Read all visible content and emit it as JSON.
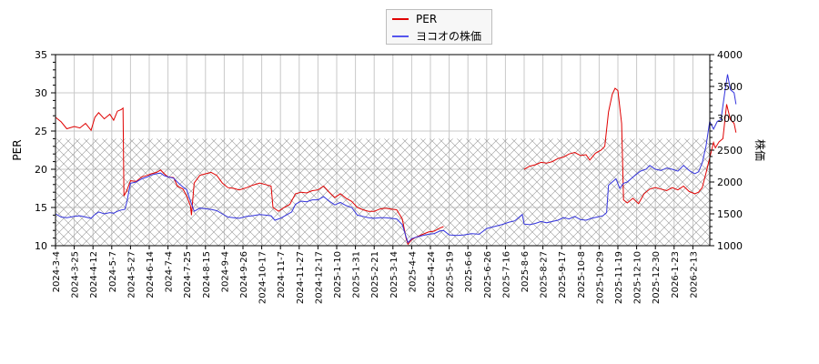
{
  "legend": {
    "items": [
      {
        "label": "PER",
        "color": "#e00000"
      },
      {
        "label": "ヨコオの株価",
        "color": "#3333dd"
      }
    ]
  },
  "axes": {
    "left_title": "PER",
    "right_title": "株価",
    "left_ticks": [
      10,
      15,
      20,
      25,
      30,
      35
    ],
    "right_ticks": [
      1000,
      1500,
      2000,
      2500,
      3000,
      3500,
      4000
    ]
  },
  "chart_data": {
    "type": "line",
    "title": "",
    "xlabel": "",
    "ylabel": "PER",
    "ylabel_right": "株価",
    "ylim": [
      10,
      35
    ],
    "ylim_right": [
      1000,
      4000
    ],
    "grid": true,
    "legend_position": "top-center",
    "hatched_band": {
      "axis": "left",
      "from": 10,
      "to": 24
    },
    "x_ticks": [
      "2024-3-4",
      "2024-3-25",
      "2024-4-12",
      "2024-5-7",
      "2024-5-27",
      "2024-6-14",
      "2024-7-4",
      "2024-7-25",
      "2024-8-15",
      "2024-9-4",
      "2024-9-26",
      "2024-10-17",
      "2024-11-7",
      "2024-11-27",
      "2024-12-17",
      "2025-1-10",
      "2025-1-31",
      "2025-2-21",
      "2025-3-14",
      "2025-4-4",
      "2025-4-24",
      "2025-5-19",
      "2025-6-6",
      "2025-6-26",
      "2025-7-16",
      "2025-8-6",
      "2025-8-27",
      "2025-9-17",
      "2025-10-8",
      "2025-10-29",
      "2025-11-19",
      "2025-12-10",
      "2025-12-30",
      "2026-1-23",
      "2026-2-13"
    ],
    "series": [
      {
        "name": "PER",
        "axis": "left",
        "color": "#e00000",
        "segments": [
          [
            [
              0,
              26.8
            ],
            [
              0.3,
              26.2
            ],
            [
              0.6,
              25.3
            ],
            [
              1.0,
              25.6
            ],
            [
              1.3,
              25.4
            ],
            [
              1.6,
              26.0
            ],
            [
              1.9,
              25.1
            ],
            [
              2.1,
              26.8
            ],
            [
              2.3,
              27.4
            ],
            [
              2.6,
              26.6
            ],
            [
              2.9,
              27.2
            ],
            [
              3.1,
              26.4
            ],
            [
              3.3,
              27.6
            ],
            [
              3.5,
              27.8
            ],
            [
              3.6,
              28.0
            ],
            [
              3.65,
              16.5
            ],
            [
              3.8,
              17.2
            ],
            [
              4.0,
              18.5
            ],
            [
              4.3,
              18.4
            ],
            [
              4.6,
              19.0
            ],
            [
              4.9,
              19.2
            ],
            [
              5.1,
              19.4
            ],
            [
              5.4,
              19.6
            ],
            [
              5.6,
              19.9
            ],
            [
              5.8,
              19.4
            ],
            [
              6.0,
              19.0
            ],
            [
              6.3,
              18.9
            ],
            [
              6.5,
              17.8
            ],
            [
              6.8,
              17.4
            ],
            [
              7.0,
              16.5
            ],
            [
              7.2,
              15.2
            ],
            [
              7.25,
              14.0
            ],
            [
              7.4,
              18.2
            ],
            [
              7.7,
              19.2
            ],
            [
              8.0,
              19.4
            ],
            [
              8.3,
              19.6
            ],
            [
              8.6,
              19.2
            ],
            [
              8.9,
              18.2
            ],
            [
              9.2,
              17.6
            ],
            [
              9.5,
              17.5
            ],
            [
              9.8,
              17.3
            ],
            [
              10.2,
              17.6
            ],
            [
              10.5,
              17.9
            ],
            [
              10.9,
              18.2
            ],
            [
              11.2,
              18.0
            ],
            [
              11.5,
              17.8
            ],
            [
              11.6,
              15.0
            ],
            [
              11.9,
              14.5
            ],
            [
              12.2,
              15.0
            ],
            [
              12.5,
              15.4
            ],
            [
              12.8,
              16.8
            ],
            [
              13.1,
              17.0
            ],
            [
              13.4,
              16.9
            ],
            [
              13.7,
              17.2
            ],
            [
              14.0,
              17.3
            ],
            [
              14.3,
              17.8
            ],
            [
              14.6,
              17.0
            ],
            [
              14.9,
              16.3
            ],
            [
              15.2,
              16.8
            ],
            [
              15.5,
              16.2
            ],
            [
              15.8,
              15.8
            ],
            [
              16.1,
              15.0
            ],
            [
              16.4,
              14.7
            ],
            [
              16.7,
              14.5
            ],
            [
              17.0,
              14.5
            ],
            [
              17.3,
              14.8
            ],
            [
              17.6,
              14.9
            ],
            [
              17.9,
              14.8
            ],
            [
              18.2,
              14.7
            ],
            [
              18.5,
              13.5
            ],
            [
              18.7,
              11.0
            ],
            [
              18.8,
              10.2
            ],
            [
              19.0,
              10.8
            ],
            [
              19.3,
              11.2
            ],
            [
              19.6,
              11.5
            ],
            [
              19.9,
              11.8
            ],
            [
              20.2,
              11.9
            ],
            [
              20.5,
              12.3
            ],
            [
              20.7,
              12.5
            ]
          ],
          [
            [
              25.0,
              20.0
            ],
            [
              25.3,
              20.4
            ],
            [
              25.6,
              20.6
            ],
            [
              25.9,
              20.9
            ],
            [
              26.2,
              20.8
            ],
            [
              26.5,
              21.0
            ],
            [
              26.8,
              21.4
            ],
            [
              27.1,
              21.6
            ],
            [
              27.4,
              22.0
            ],
            [
              27.7,
              22.2
            ],
            [
              28.0,
              21.8
            ],
            [
              28.3,
              21.9
            ],
            [
              28.5,
              21.2
            ],
            [
              28.8,
              22.1
            ],
            [
              29.1,
              22.5
            ],
            [
              29.3,
              23.0
            ],
            [
              29.5,
              27.5
            ],
            [
              29.7,
              29.8
            ],
            [
              29.85,
              30.6
            ],
            [
              30.0,
              30.3
            ],
            [
              30.2,
              26.0
            ],
            [
              30.3,
              16.0
            ],
            [
              30.5,
              15.6
            ],
            [
              30.8,
              16.2
            ],
            [
              31.1,
              15.5
            ],
            [
              31.4,
              16.8
            ],
            [
              31.7,
              17.4
            ],
            [
              32.0,
              17.6
            ],
            [
              32.3,
              17.4
            ],
            [
              32.6,
              17.2
            ],
            [
              32.9,
              17.6
            ],
            [
              33.2,
              17.3
            ],
            [
              33.5,
              17.8
            ],
            [
              33.8,
              17.1
            ],
            [
              34.1,
              16.8
            ],
            [
              34.3,
              17.0
            ],
            [
              34.5,
              17.6
            ],
            [
              34.7,
              19.5
            ],
            [
              34.9,
              21.5
            ],
            [
              35.1,
              23.5
            ],
            [
              35.2,
              22.8
            ],
            [
              35.4,
              23.6
            ],
            [
              35.6,
              24.0
            ],
            [
              35.8,
              28.5
            ],
            [
              36.0,
              26.5
            ],
            [
              36.2,
              26.0
            ],
            [
              36.3,
              24.8
            ]
          ]
        ]
      },
      {
        "name": "ヨコオの株価",
        "axis": "right",
        "color": "#3333dd",
        "segments": [
          [
            [
              0,
              1500
            ],
            [
              0.3,
              1450
            ],
            [
              0.6,
              1440
            ],
            [
              1.0,
              1460
            ],
            [
              1.3,
              1470
            ],
            [
              1.6,
              1450
            ],
            [
              1.9,
              1430
            ],
            [
              2.1,
              1490
            ],
            [
              2.3,
              1530
            ],
            [
              2.6,
              1500
            ],
            [
              2.9,
              1520
            ],
            [
              3.1,
              1510
            ],
            [
              3.3,
              1540
            ],
            [
              3.5,
              1560
            ],
            [
              3.7,
              1570
            ],
            [
              3.8,
              1680
            ],
            [
              4.0,
              1980
            ],
            [
              4.3,
              2000
            ],
            [
              4.6,
              2050
            ],
            [
              4.9,
              2080
            ],
            [
              5.1,
              2110
            ],
            [
              5.4,
              2130
            ],
            [
              5.6,
              2140
            ],
            [
              5.8,
              2100
            ],
            [
              6.0,
              2080
            ],
            [
              6.3,
              2060
            ],
            [
              6.5,
              2000
            ],
            [
              6.8,
              1920
            ],
            [
              7.0,
              1880
            ],
            [
              7.2,
              1700
            ],
            [
              7.3,
              1620
            ],
            [
              7.4,
              1540
            ],
            [
              7.7,
              1590
            ],
            [
              8.0,
              1580
            ],
            [
              8.3,
              1570
            ],
            [
              8.6,
              1550
            ],
            [
              8.9,
              1500
            ],
            [
              9.2,
              1450
            ],
            [
              9.5,
              1440
            ],
            [
              9.8,
              1430
            ],
            [
              10.2,
              1460
            ],
            [
              10.5,
              1470
            ],
            [
              10.9,
              1490
            ],
            [
              11.2,
              1480
            ],
            [
              11.5,
              1470
            ],
            [
              11.7,
              1400
            ],
            [
              12.0,
              1430
            ],
            [
              12.3,
              1480
            ],
            [
              12.6,
              1530
            ],
            [
              12.8,
              1650
            ],
            [
              13.1,
              1700
            ],
            [
              13.4,
              1690
            ],
            [
              13.7,
              1720
            ],
            [
              14.0,
              1720
            ],
            [
              14.3,
              1770
            ],
            [
              14.6,
              1700
            ],
            [
              14.9,
              1640
            ],
            [
              15.2,
              1680
            ],
            [
              15.5,
              1630
            ],
            [
              15.8,
              1600
            ],
            [
              16.1,
              1480
            ],
            [
              16.4,
              1460
            ],
            [
              16.7,
              1440
            ],
            [
              17.0,
              1430
            ],
            [
              17.3,
              1440
            ],
            [
              17.6,
              1440
            ],
            [
              17.9,
              1430
            ],
            [
              18.2,
              1420
            ],
            [
              18.5,
              1330
            ],
            [
              18.7,
              1140
            ],
            [
              18.8,
              1050
            ],
            [
              19.0,
              1110
            ],
            [
              19.3,
              1140
            ],
            [
              19.6,
              1160
            ],
            [
              19.9,
              1180
            ],
            [
              20.2,
              1190
            ],
            [
              20.5,
              1230
            ],
            [
              20.7,
              1240
            ],
            [
              21.0,
              1170
            ],
            [
              21.4,
              1160
            ],
            [
              21.8,
              1170
            ],
            [
              22.2,
              1190
            ],
            [
              22.6,
              1180
            ],
            [
              23.0,
              1270
            ],
            [
              23.4,
              1300
            ],
            [
              23.8,
              1330
            ],
            [
              24.2,
              1370
            ],
            [
              24.5,
              1390
            ],
            [
              24.7,
              1440
            ],
            [
              24.9,
              1490
            ],
            [
              25.0,
              1340
            ],
            [
              25.3,
              1330
            ],
            [
              25.6,
              1350
            ],
            [
              25.9,
              1380
            ],
            [
              26.2,
              1360
            ],
            [
              26.5,
              1380
            ],
            [
              26.8,
              1400
            ],
            [
              27.1,
              1440
            ],
            [
              27.4,
              1420
            ],
            [
              27.7,
              1460
            ],
            [
              28.0,
              1410
            ],
            [
              28.3,
              1400
            ],
            [
              28.6,
              1430
            ],
            [
              28.9,
              1450
            ],
            [
              29.2,
              1470
            ],
            [
              29.4,
              1520
            ],
            [
              29.5,
              1950
            ],
            [
              29.7,
              2000
            ],
            [
              29.9,
              2050
            ],
            [
              30.1,
              1900
            ],
            [
              30.3,
              1980
            ],
            [
              30.5,
              2000
            ],
            [
              30.7,
              2050
            ],
            [
              30.9,
              2100
            ],
            [
              31.2,
              2170
            ],
            [
              31.5,
              2200
            ],
            [
              31.7,
              2260
            ],
            [
              32.0,
              2200
            ],
            [
              32.3,
              2180
            ],
            [
              32.6,
              2220
            ],
            [
              32.9,
              2200
            ],
            [
              33.2,
              2170
            ],
            [
              33.5,
              2260
            ],
            [
              33.8,
              2180
            ],
            [
              34.1,
              2130
            ],
            [
              34.3,
              2160
            ],
            [
              34.5,
              2300
            ],
            [
              34.7,
              2560
            ],
            [
              34.9,
              2950
            ],
            [
              35.1,
              2830
            ],
            [
              35.3,
              2950
            ],
            [
              35.5,
              2980
            ],
            [
              35.7,
              3400
            ],
            [
              35.85,
              3690
            ],
            [
              36.0,
              3450
            ],
            [
              36.2,
              3400
            ],
            [
              36.3,
              3220
            ]
          ]
        ]
      }
    ]
  }
}
